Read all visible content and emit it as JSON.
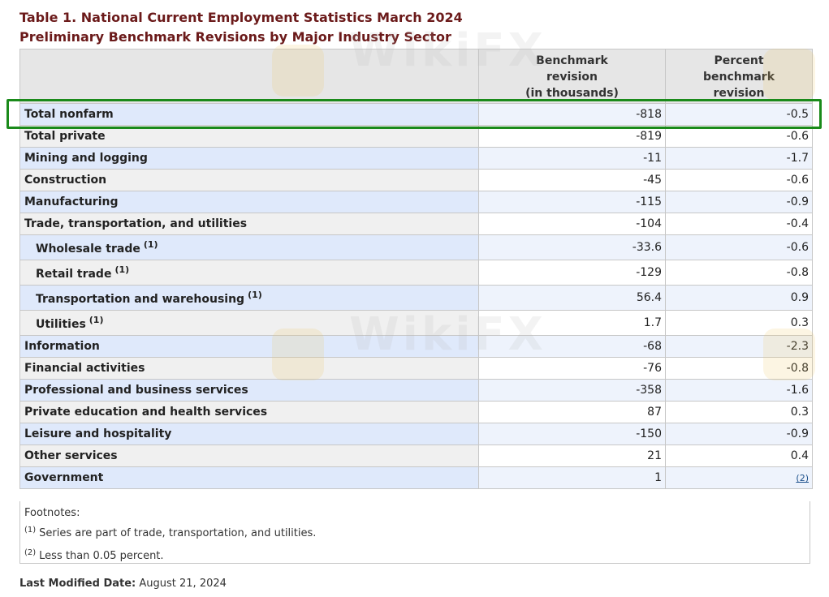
{
  "title": {
    "line1": "Table 1. National Current Employment Statistics March 2024",
    "line2": "Preliminary Benchmark Revisions by Major Industry Sector"
  },
  "table": {
    "headers": {
      "col2": [
        "Benchmark",
        "revision",
        "(in thousands)"
      ],
      "col3": [
        "Percent",
        "benchmark",
        "revision"
      ]
    },
    "rows": [
      {
        "label": "Total nonfarm",
        "revision": "-818",
        "percent": "-0.5"
      },
      {
        "label": "Total private",
        "revision": "-819",
        "percent": "-0.6"
      },
      {
        "label": "Mining and logging",
        "revision": "-11",
        "percent": "-1.7"
      },
      {
        "label": "Construction",
        "revision": "-45",
        "percent": "-0.6"
      },
      {
        "label": "Manufacturing",
        "revision": "-115",
        "percent": "-0.9"
      },
      {
        "label": "Trade, transportation, and utilities",
        "revision": "-104",
        "percent": "-0.4"
      },
      {
        "label": "Wholesale trade",
        "footnote": "(1)",
        "revision": "-33.6",
        "percent": "-0.6"
      },
      {
        "label": "Retail trade",
        "footnote": "(1)",
        "revision": "-129",
        "percent": "-0.8"
      },
      {
        "label": "Transportation and warehousing",
        "footnote": "(1)",
        "revision": "56.4",
        "percent": "0.9"
      },
      {
        "label": "Utilities",
        "footnote": "(1)",
        "revision": "1.7",
        "percent": "0.3"
      },
      {
        "label": "Information",
        "revision": "-68",
        "percent": "-2.3"
      },
      {
        "label": "Financial activities",
        "revision": "-76",
        "percent": "-0.8"
      },
      {
        "label": "Professional and business services",
        "revision": "-358",
        "percent": "-1.6"
      },
      {
        "label": "Private education and health services",
        "revision": "87",
        "percent": "0.3"
      },
      {
        "label": "Leisure and hospitality",
        "revision": "-150",
        "percent": "-0.9"
      },
      {
        "label": "Other services",
        "revision": "21",
        "percent": "0.4"
      },
      {
        "label": "Government",
        "revision": "1",
        "percent_link": "(2)"
      }
    ]
  },
  "footnotes": {
    "title": "Footnotes:",
    "items": [
      {
        "mark": "(1)",
        "text": "Series are part of trade, transportation, and utilities."
      },
      {
        "mark": "(2)",
        "text": "Less than 0.05 percent."
      }
    ]
  },
  "last_modified": {
    "label": "Last Modified Date:",
    "value": "August 21, 2024"
  },
  "watermark": {
    "text": "WikiFX"
  },
  "colors": {
    "title": "#6b1a1a",
    "highlight_border": "#1a8a1a",
    "row_label_alt": "#dfe9fb",
    "header_bg": "#e6e6e6"
  }
}
